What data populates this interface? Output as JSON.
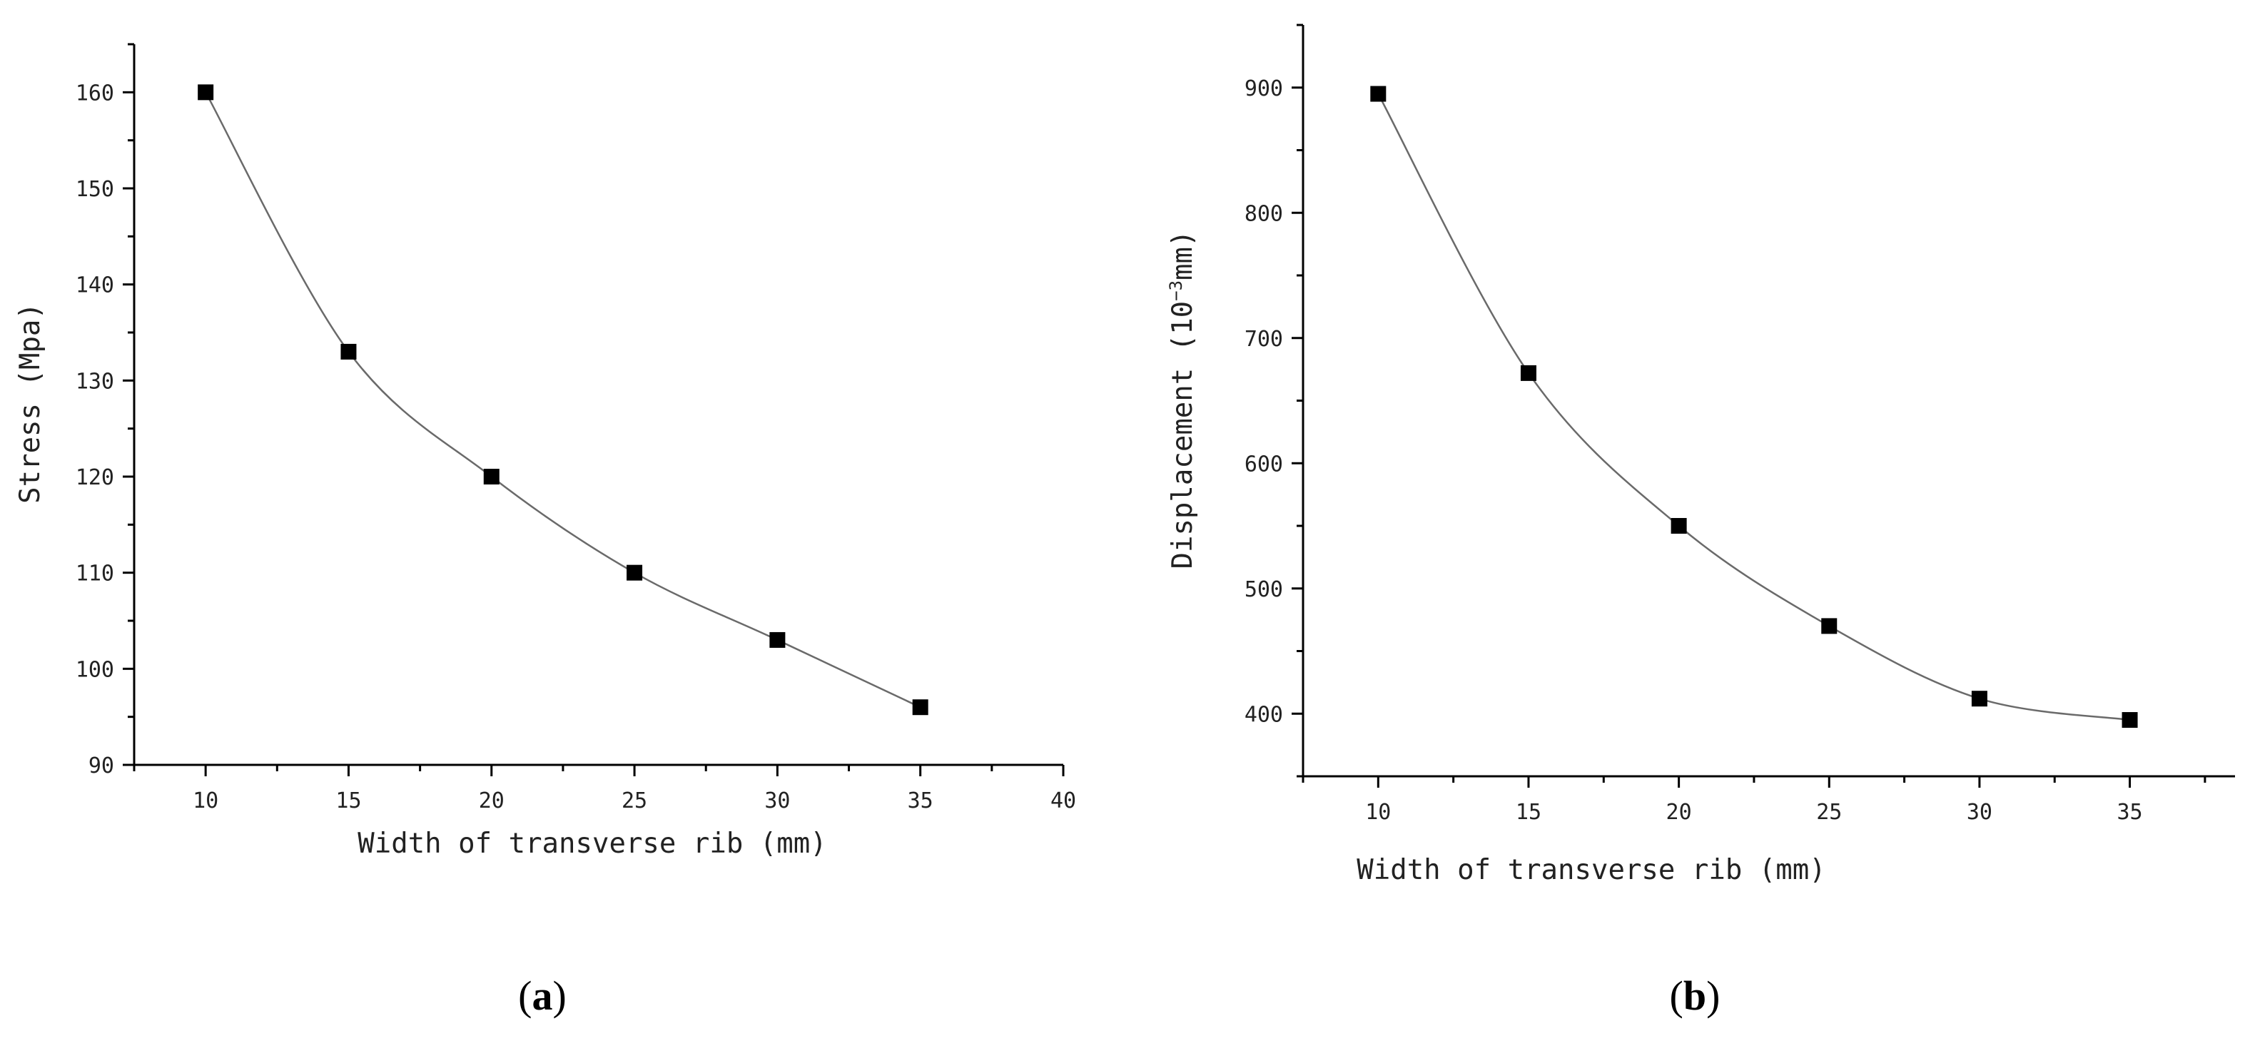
{
  "panels": [
    {
      "label_open": "(",
      "label_letter": "a",
      "label_close": ")",
      "xlabel": "Width of transverse rib (mm)",
      "ylabel": "Stress (Mpa)",
      "ylabel_sup": ""
    },
    {
      "label_open": "(",
      "label_letter": "b",
      "label_close": ")",
      "xlabel": "Width of transverse rib (mm)",
      "ylabel": "Displacement (10",
      "ylabel_sup": "−3",
      "ylabel_tail": "mm)"
    }
  ],
  "chart_data": [
    {
      "type": "line",
      "title": "",
      "xlabel": "Width of transverse rib (mm)",
      "ylabel": "Stress (Mpa)",
      "x": [
        10,
        15,
        20,
        25,
        30,
        35
      ],
      "series": [
        {
          "values": [
            160,
            133,
            120,
            110,
            103,
            96
          ]
        }
      ],
      "xlim": [
        7.5,
        40
      ],
      "ylim": [
        90,
        165
      ],
      "xticks": [
        10,
        15,
        20,
        25,
        30,
        35,
        40
      ],
      "yticks": [
        90,
        100,
        110,
        120,
        130,
        140,
        150,
        160
      ],
      "marker": "square",
      "marker_color": "#000000",
      "line_color": "#6a6a6a",
      "grid": false,
      "legend": "none"
    },
    {
      "type": "line",
      "title": "",
      "xlabel": "Width of transverse rib (mm)",
      "ylabel": "Displacement (10−3mm)",
      "x": [
        10,
        15,
        20,
        25,
        30,
        35
      ],
      "series": [
        {
          "values": [
            895,
            672,
            550,
            470,
            412,
            395
          ]
        }
      ],
      "xlim": [
        7.5,
        38.5
      ],
      "ylim": [
        350,
        950
      ],
      "xticks": [
        10,
        15,
        20,
        25,
        30,
        35
      ],
      "yticks": [
        400,
        500,
        600,
        700,
        800,
        900
      ],
      "marker": "square",
      "marker_color": "#000000",
      "line_color": "#6a6a6a",
      "grid": false,
      "legend": "none"
    }
  ]
}
